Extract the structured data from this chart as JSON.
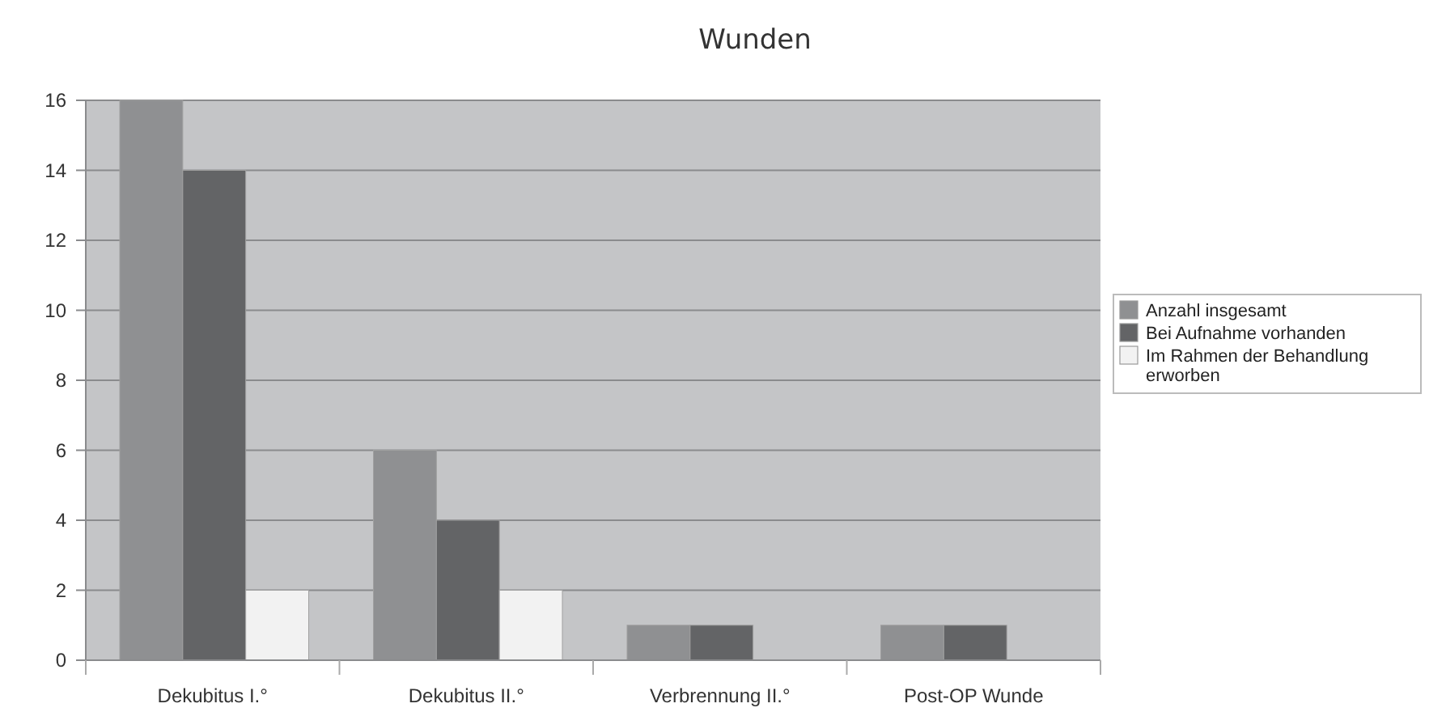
{
  "chart_data": {
    "type": "bar",
    "title": "Wunden",
    "categories": [
      "Dekubitus I.°",
      "Dekubitus II.°",
      "Verbrennung II.°",
      "Post-OP Wunde"
    ],
    "series": [
      {
        "name": "Anzahl insgesamt",
        "color": "#8f9092",
        "values": [
          16,
          6,
          1,
          1
        ]
      },
      {
        "name": "Bei Aufnahme vorhanden",
        "color": "#636466",
        "values": [
          14,
          4,
          1,
          1
        ]
      },
      {
        "name": "Im Rahmen der Behandlung erworben",
        "color": "#f2f2f2",
        "values": [
          2,
          2,
          0,
          0
        ]
      }
    ],
    "ylim": [
      0,
      16
    ],
    "yticks": [
      0,
      2,
      4,
      6,
      8,
      10,
      12,
      14,
      16
    ],
    "grid": "y",
    "legend": "right"
  }
}
